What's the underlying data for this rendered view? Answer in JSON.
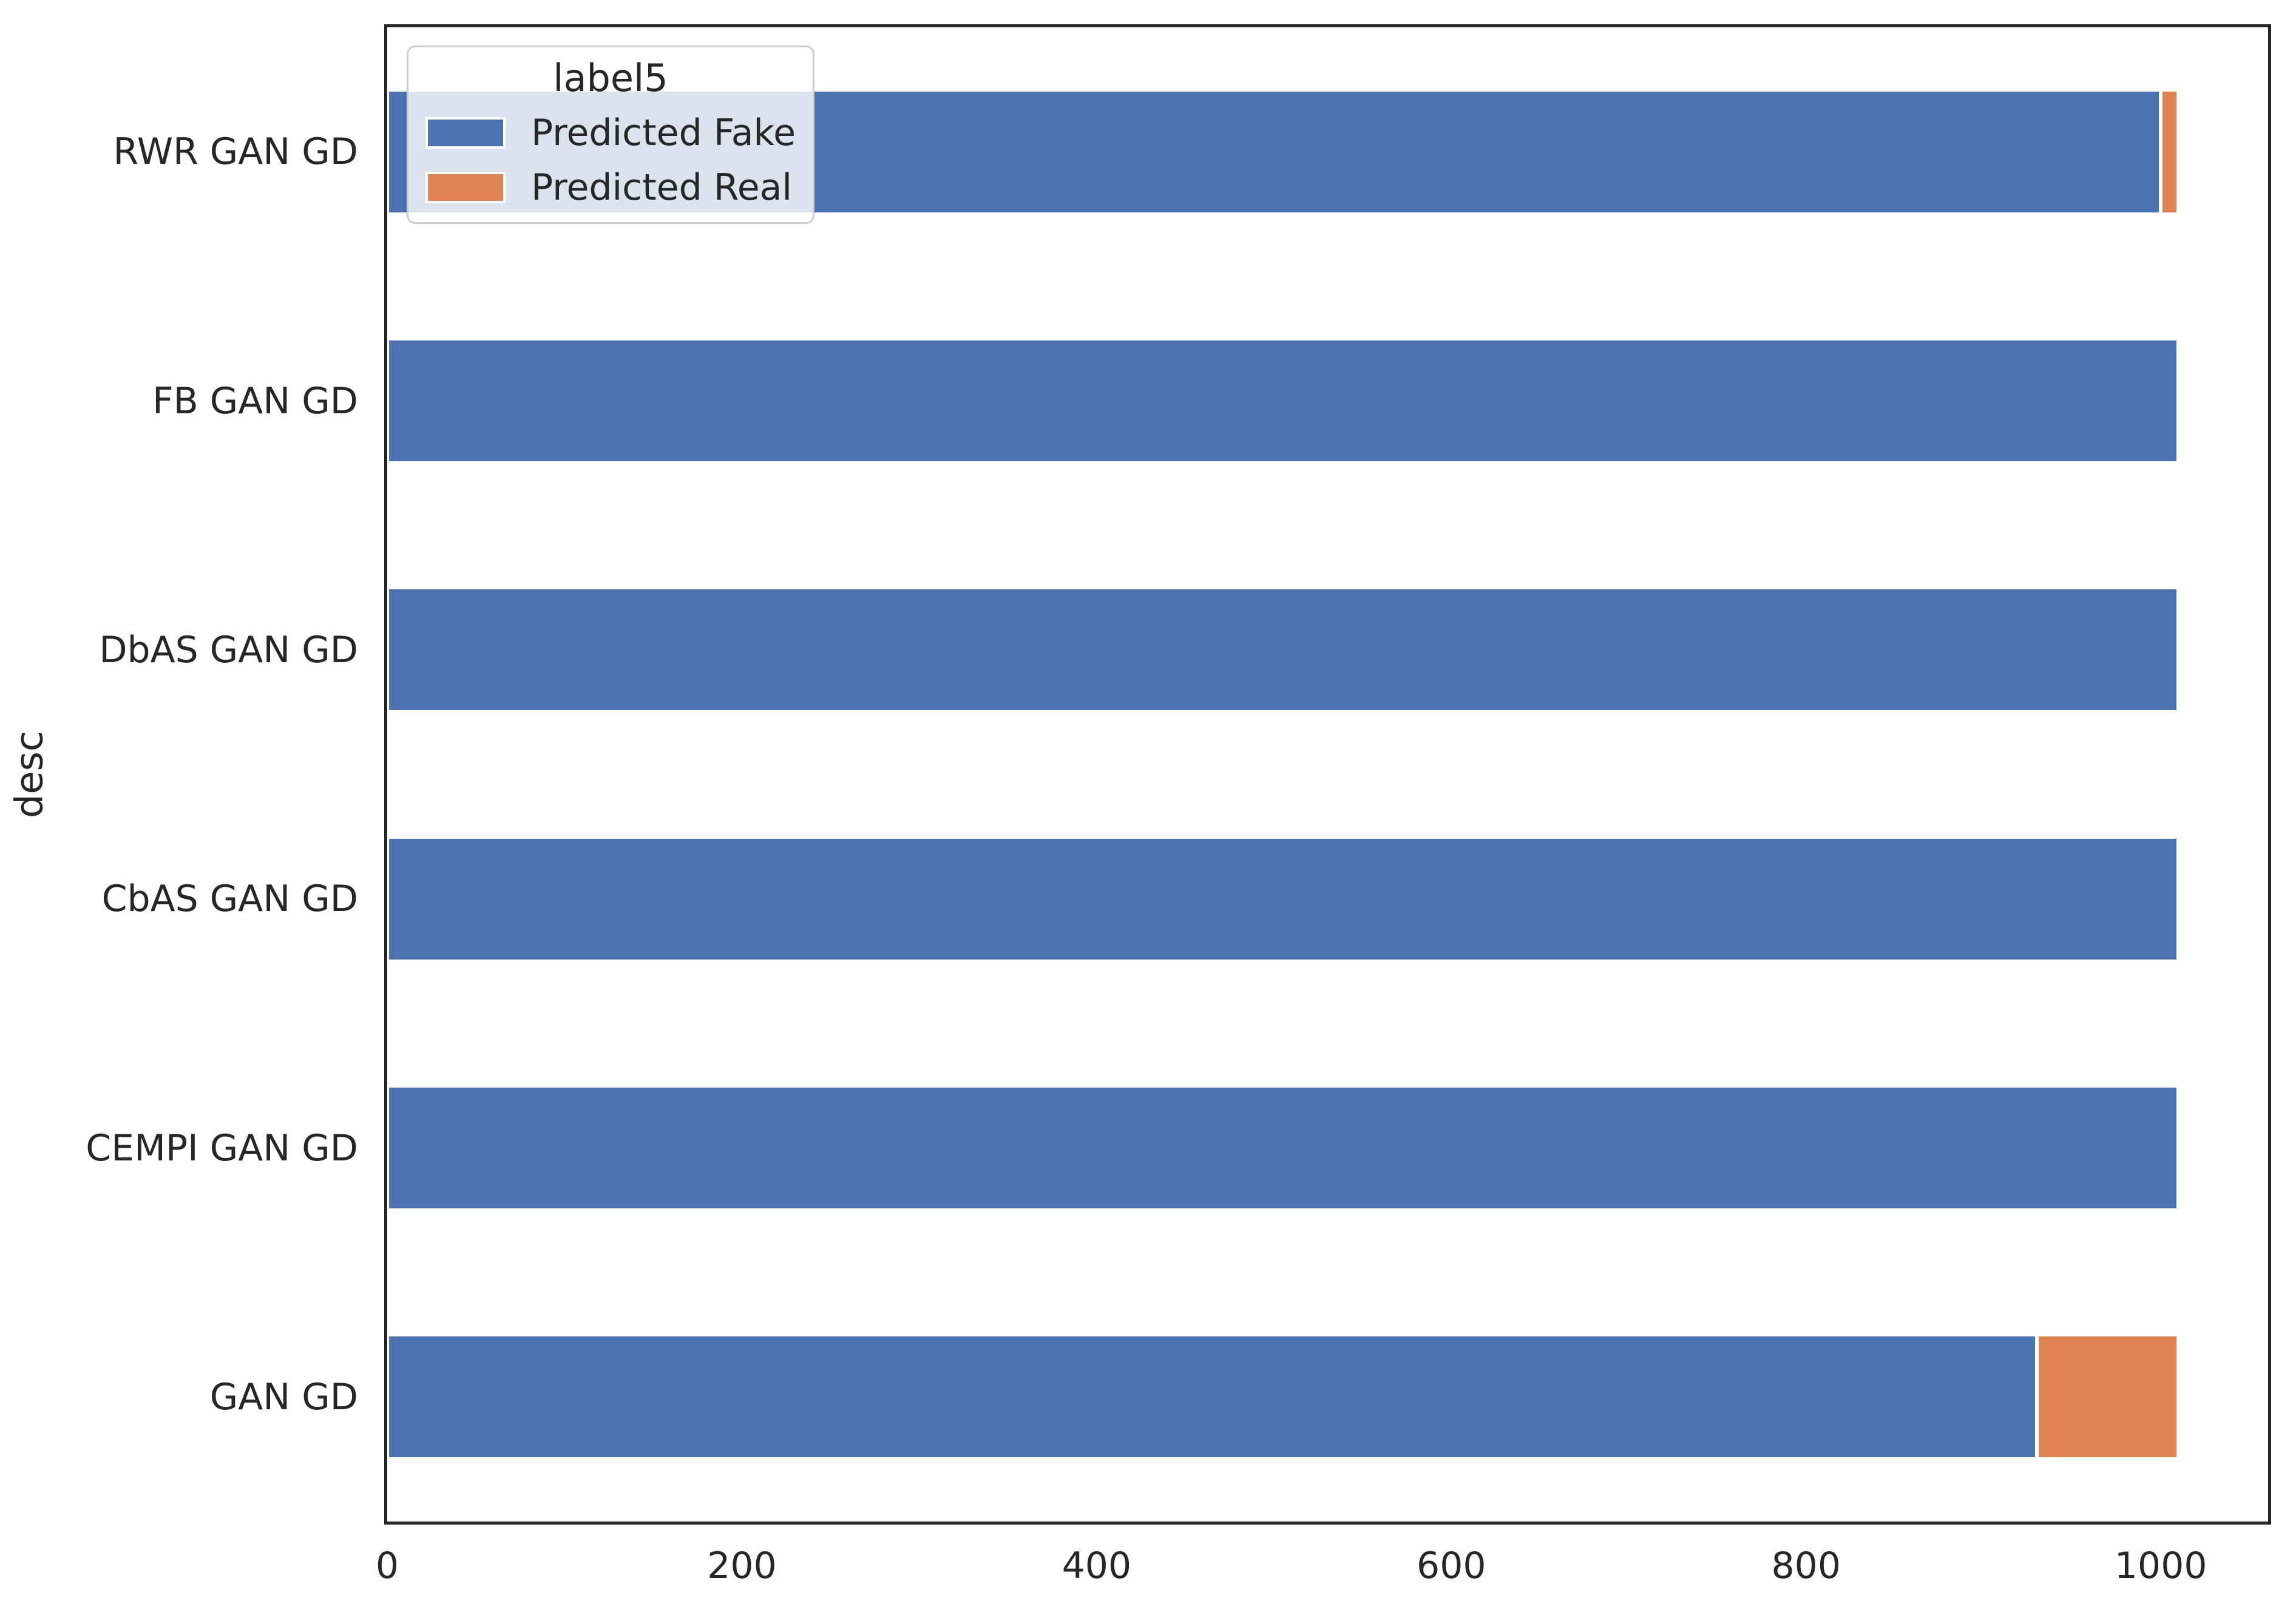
{
  "style": {
    "background": "#ffffff",
    "spine_color": "#262626",
    "text_color": "#262626",
    "bar_edge_color": "#ffffff",
    "legend_face": "rgba(255,255,255,0.8)",
    "legend_border": "#cccccc"
  },
  "chart_data": {
    "type": "bar",
    "orientation": "horizontal",
    "stacked": true,
    "title": "",
    "xlabel": "",
    "ylabel": "desc",
    "categories": [
      "RWR GAN GD",
      "FB GAN GD",
      "DbAS GAN GD",
      "CbAS GAN GD",
      "CEMPI GAN GD",
      "GAN GD"
    ],
    "series": [
      {
        "name": "Predicted Fake",
        "color": "#4C72B0",
        "values": [
          1000,
          1010,
          1010,
          1010,
          1010,
          930
        ]
      },
      {
        "name": "Predicted Real",
        "color": "#DD8452",
        "values": [
          10,
          0,
          0,
          0,
          0,
          80
        ]
      }
    ],
    "xticks": [
      "0",
      "200",
      "400",
      "600",
      "800",
      "1000"
    ],
    "xtick_values": [
      0,
      200,
      400,
      600,
      800,
      1000
    ],
    "xlim": [
      0,
      1060.5
    ],
    "grid": false,
    "legend": {
      "title": "label5",
      "position": "upper left",
      "entries": [
        "Predicted Fake",
        "Predicted Real"
      ]
    }
  }
}
